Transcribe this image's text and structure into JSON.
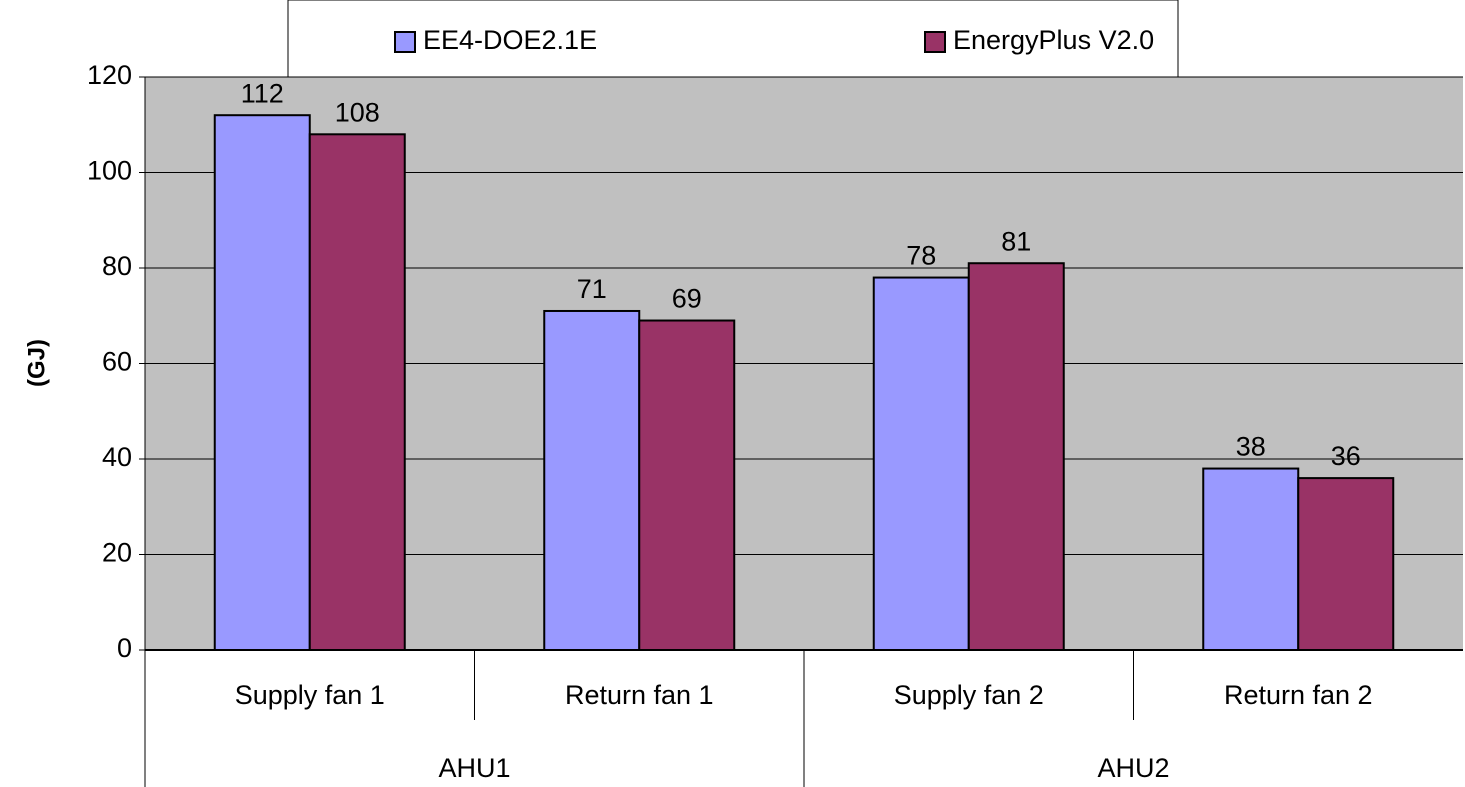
{
  "chart_data": {
    "type": "bar",
    "y_label": "(GJ)",
    "categories": [
      "Supply fan 1",
      "Return fan 1",
      "Supply fan 2",
      "Return fan 2"
    ],
    "groups": [
      "AHU1",
      "AHU2"
    ],
    "series": [
      {
        "name": "EE4-DOE2.1E",
        "color": "#9999ff",
        "values": [
          112,
          71,
          78,
          38
        ]
      },
      {
        "name": "EnergyPlus V2.0",
        "color": "#993366",
        "values": [
          108,
          69,
          81,
          36
        ]
      }
    ],
    "ylim": [
      0,
      120
    ],
    "yticks": [
      0,
      20,
      40,
      60,
      80,
      100,
      120
    ],
    "grid": true,
    "legend": "top"
  }
}
